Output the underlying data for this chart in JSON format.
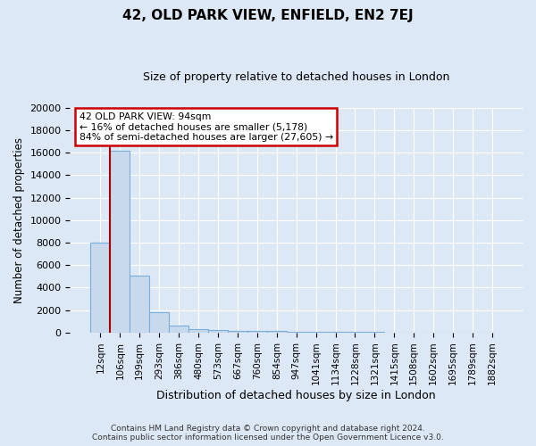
{
  "title": "42, OLD PARK VIEW, ENFIELD, EN2 7EJ",
  "subtitle": "Size of property relative to detached houses in London",
  "xlabel": "Distribution of detached houses by size in London",
  "ylabel": "Number of detached properties",
  "bar_labels": [
    "12sqm",
    "106sqm",
    "199sqm",
    "293sqm",
    "386sqm",
    "480sqm",
    "573sqm",
    "667sqm",
    "760sqm",
    "854sqm",
    "947sqm",
    "1041sqm",
    "1134sqm",
    "1228sqm",
    "1321sqm",
    "1415sqm",
    "1508sqm",
    "1602sqm",
    "1695sqm",
    "1789sqm",
    "1882sqm"
  ],
  "bar_values": [
    8000,
    16200,
    5100,
    1800,
    600,
    310,
    200,
    150,
    120,
    130,
    80,
    70,
    60,
    50,
    40,
    30,
    20,
    15,
    10,
    8,
    5
  ],
  "bar_color": "#c9d9ec",
  "bar_edge_color": "#7aadda",
  "ylim": [
    0,
    20000
  ],
  "yticks": [
    0,
    2000,
    4000,
    6000,
    8000,
    10000,
    12000,
    14000,
    16000,
    18000,
    20000
  ],
  "vline_x": 0.5,
  "vline_color": "#aa0000",
  "annotation_text": "42 OLD PARK VIEW: 94sqm\n← 16% of detached houses are smaller (5,178)\n84% of semi-detached houses are larger (27,605) →",
  "annotation_box_facecolor": "white",
  "annotation_box_edgecolor": "#cc0000",
  "bg_color": "#dce8f5",
  "footer_line1": "Contains HM Land Registry data © Crown copyright and database right 2024.",
  "footer_line2": "Contains public sector information licensed under the Open Government Licence v3.0."
}
